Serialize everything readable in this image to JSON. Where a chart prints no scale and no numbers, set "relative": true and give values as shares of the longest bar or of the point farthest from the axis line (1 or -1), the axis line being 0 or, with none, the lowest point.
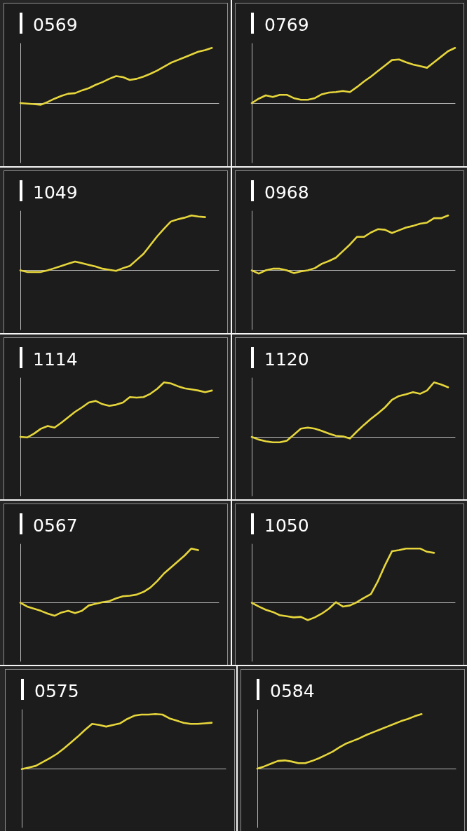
{
  "chart_data": [
    {
      "type": "line",
      "title": "0569",
      "categories": [
        null,
        null,
        null,
        null,
        null,
        null,
        null,
        null,
        null,
        null,
        null,
        null,
        null,
        null,
        null,
        null,
        null,
        null,
        null,
        null,
        null,
        null,
        null,
        null,
        null,
        null,
        null,
        null,
        null,
        null
      ],
      "values": [
        0,
        -0.01,
        -0.02,
        -0.03,
        0.02,
        0.08,
        0.13,
        0.17,
        0.18,
        0.23,
        0.27,
        0.33,
        0.38,
        0.44,
        0.49,
        0.47,
        0.42,
        0.44,
        0.48,
        0.53,
        0.59,
        0.66,
        0.73,
        0.78,
        0.83,
        0.88,
        0.93,
        0.96,
        1,
        null
      ],
      "color": "#e6d63c",
      "relative": true,
      "tick_labels": false
    },
    {
      "type": "line",
      "title": "0769",
      "categories": [
        null,
        null,
        null,
        null,
        null,
        null,
        null,
        null,
        null,
        null,
        null,
        null,
        null,
        null,
        null,
        null,
        null,
        null,
        null,
        null,
        null,
        null,
        null,
        null,
        null,
        null,
        null,
        null,
        null,
        null
      ],
      "values": [
        0,
        0.08,
        0.14,
        0.11,
        0.15,
        0.15,
        0.09,
        0.06,
        0.06,
        0.09,
        0.16,
        0.19,
        0.2,
        0.22,
        0.2,
        0.29,
        0.39,
        0.48,
        0.58,
        0.68,
        0.78,
        0.79,
        0.74,
        0.7,
        0.67,
        0.64,
        0.74,
        0.84,
        0.94,
        1
      ],
      "color": "#e6d63c",
      "relative": true,
      "tick_labels": false
    },
    {
      "type": "line",
      "title": "1049",
      "categories": [
        null,
        null,
        null,
        null,
        null,
        null,
        null,
        null,
        null,
        null,
        null,
        null,
        null,
        null,
        null,
        null,
        null,
        null,
        null,
        null,
        null,
        null,
        null,
        null,
        null,
        null,
        null,
        null,
        null,
        null
      ],
      "values": [
        0,
        -0.03,
        -0.03,
        -0.03,
        0,
        0.04,
        0.08,
        0.12,
        0.16,
        0.13,
        0.1,
        0.07,
        0.03,
        0.01,
        -0.01,
        0.04,
        0.08,
        0.19,
        0.3,
        0.46,
        0.62,
        0.76,
        0.89,
        0.93,
        0.96,
        1,
        0.98,
        0.97,
        null,
        null
      ],
      "color": "#e6d63c",
      "relative": true,
      "tick_labels": false
    },
    {
      "type": "line",
      "title": "0968",
      "categories": [
        null,
        null,
        null,
        null,
        null,
        null,
        null,
        null,
        null,
        null,
        null,
        null,
        null,
        null,
        null,
        null,
        null,
        null,
        null,
        null,
        null,
        null,
        null,
        null,
        null,
        null,
        null,
        null,
        null,
        null
      ],
      "values": [
        0,
        -0.06,
        0,
        0.03,
        0.03,
        0,
        -0.05,
        -0.02,
        0,
        0.04,
        0.12,
        0.17,
        0.23,
        0.35,
        0.47,
        0.61,
        0.61,
        0.69,
        0.75,
        0.74,
        0.68,
        0.73,
        0.78,
        0.81,
        0.85,
        0.87,
        0.95,
        0.95,
        1,
        null
      ],
      "color": "#e6d63c",
      "relative": true,
      "tick_labels": false
    },
    {
      "type": "line",
      "title": "1114",
      "categories": [
        null,
        null,
        null,
        null,
        null,
        null,
        null,
        null,
        null,
        null,
        null,
        null,
        null,
        null,
        null,
        null,
        null,
        null,
        null,
        null,
        null,
        null,
        null,
        null,
        null,
        null,
        null,
        null,
        null,
        null
      ],
      "values": [
        0,
        -0.01,
        0.06,
        0.15,
        0.2,
        0.17,
        0.26,
        0.36,
        0.46,
        0.54,
        0.63,
        0.66,
        0.6,
        0.57,
        0.59,
        0.63,
        0.73,
        0.72,
        0.73,
        0.79,
        0.88,
        1,
        0.98,
        0.93,
        0.89,
        0.87,
        0.85,
        0.82,
        0.85,
        null
      ],
      "color": "#e6d63c",
      "relative": true,
      "tick_labels": false
    },
    {
      "type": "line",
      "title": "1120",
      "categories": [
        null,
        null,
        null,
        null,
        null,
        null,
        null,
        null,
        null,
        null,
        null,
        null,
        null,
        null,
        null,
        null,
        null,
        null,
        null,
        null,
        null,
        null,
        null,
        null,
        null,
        null,
        null,
        null,
        null,
        null
      ],
      "values": [
        0,
        -0.05,
        -0.08,
        -0.1,
        -0.1,
        -0.07,
        0.04,
        0.15,
        0.17,
        0.15,
        0.11,
        0.06,
        0.02,
        0.01,
        -0.03,
        0.1,
        0.22,
        0.33,
        0.43,
        0.54,
        0.68,
        0.75,
        0.78,
        0.82,
        0.79,
        0.85,
        1,
        0.96,
        0.91,
        null
      ],
      "color": "#e6d63c",
      "relative": true,
      "tick_labels": false
    },
    {
      "type": "line",
      "title": "0567",
      "categories": [
        null,
        null,
        null,
        null,
        null,
        null,
        null,
        null,
        null,
        null,
        null,
        null,
        null,
        null,
        null,
        null,
        null,
        null,
        null,
        null,
        null,
        null,
        null,
        null,
        null,
        null,
        null,
        null,
        null,
        null
      ],
      "values": [
        0,
        -0.07,
        -0.11,
        -0.15,
        -0.2,
        -0.24,
        -0.18,
        -0.15,
        -0.19,
        -0.15,
        -0.05,
        -0.02,
        0.01,
        0.03,
        0.08,
        0.12,
        0.13,
        0.15,
        0.2,
        0.28,
        0.4,
        0.54,
        0.65,
        0.76,
        0.87,
        1,
        0.97,
        null,
        null,
        null
      ],
      "color": "#e6d63c",
      "relative": true,
      "tick_labels": false
    },
    {
      "type": "line",
      "title": "1050",
      "categories": [
        null,
        null,
        null,
        null,
        null,
        null,
        null,
        null,
        null,
        null,
        null,
        null,
        null,
        null,
        null,
        null,
        null,
        null,
        null,
        null,
        null,
        null,
        null,
        null,
        null,
        null,
        null,
        null,
        null,
        null
      ],
      "values": [
        0,
        -0.07,
        -0.13,
        -0.17,
        -0.23,
        -0.25,
        -0.27,
        -0.26,
        -0.32,
        -0.27,
        -0.2,
        -0.11,
        0.01,
        -0.07,
        -0.05,
        0.01,
        0.09,
        0.16,
        0.4,
        0.69,
        0.95,
        0.97,
        1,
        1,
        1,
        0.94,
        0.92,
        null,
        null,
        null
      ],
      "color": "#e6d63c",
      "relative": true,
      "tick_labels": false
    },
    {
      "type": "line",
      "title": "0575",
      "categories": [
        null,
        null,
        null,
        null,
        null,
        null,
        null,
        null,
        null,
        null,
        null,
        null,
        null,
        null,
        null,
        null,
        null,
        null,
        null,
        null,
        null,
        null,
        null,
        null,
        null,
        null,
        null,
        null,
        null,
        null
      ],
      "values": [
        -0.01,
        0.02,
        0.05,
        0.12,
        0.19,
        0.27,
        0.37,
        0.48,
        0.59,
        0.71,
        0.82,
        0.8,
        0.77,
        0.8,
        0.83,
        0.91,
        0.97,
        0.99,
        0.99,
        1,
        0.99,
        0.92,
        0.88,
        0.84,
        0.82,
        0.82,
        0.83,
        0.84,
        null,
        null
      ],
      "color": "#e6d63c",
      "relative": true,
      "tick_labels": false
    },
    {
      "type": "line",
      "title": "0584",
      "categories": [
        null,
        null,
        null,
        null,
        null,
        null,
        null,
        null,
        null,
        null,
        null,
        null,
        null,
        null,
        null,
        null,
        null,
        null,
        null,
        null,
        null,
        null,
        null,
        null,
        null,
        null,
        null,
        null,
        null,
        null
      ],
      "values": [
        0,
        0.04,
        0.09,
        0.14,
        0.15,
        0.13,
        0.1,
        0.1,
        0.14,
        0.19,
        0.25,
        0.31,
        0.39,
        0.46,
        0.51,
        0.56,
        0.62,
        0.67,
        0.72,
        0.77,
        0.82,
        0.87,
        0.91,
        0.96,
        1,
        null,
        null,
        null,
        null,
        null
      ],
      "color": "#e6d63c",
      "relative": true,
      "tick_labels": false
    }
  ]
}
